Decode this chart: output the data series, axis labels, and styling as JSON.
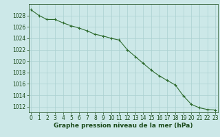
{
  "x": [
    0,
    1,
    2,
    3,
    4,
    5,
    6,
    7,
    8,
    9,
    10,
    11,
    12,
    13,
    14,
    15,
    16,
    17,
    18,
    19,
    20,
    21,
    22,
    23
  ],
  "y": [
    1029.0,
    1028.0,
    1027.3,
    1027.3,
    1026.7,
    1026.2,
    1025.8,
    1025.3,
    1024.7,
    1024.4,
    1024.0,
    1023.7,
    1022.0,
    1020.8,
    1019.6,
    1018.4,
    1017.4,
    1016.6,
    1015.8,
    1013.9,
    1012.4,
    1011.8,
    1011.5,
    1011.4
  ],
  "line_color": "#2d6a2d",
  "marker": "+",
  "marker_size": 3,
  "marker_linewidth": 0.8,
  "line_width": 0.8,
  "bg_color": "#cce8e8",
  "grid_color": "#aad0d0",
  "xlabel": "Graphe pression niveau de la mer (hPa)",
  "xlabel_color": "#1a4a1a",
  "xlabel_fontsize": 6.5,
  "tick_color": "#1a4a1a",
  "tick_fontsize": 5.5,
  "ylim": [
    1011,
    1030
  ],
  "xlim": [
    -0.3,
    23.3
  ],
  "yticks": [
    1012,
    1014,
    1016,
    1018,
    1020,
    1022,
    1024,
    1026,
    1028
  ],
  "xticks": [
    0,
    1,
    2,
    3,
    4,
    5,
    6,
    7,
    8,
    9,
    10,
    11,
    12,
    13,
    14,
    15,
    16,
    17,
    18,
    19,
    20,
    21,
    22,
    23
  ]
}
